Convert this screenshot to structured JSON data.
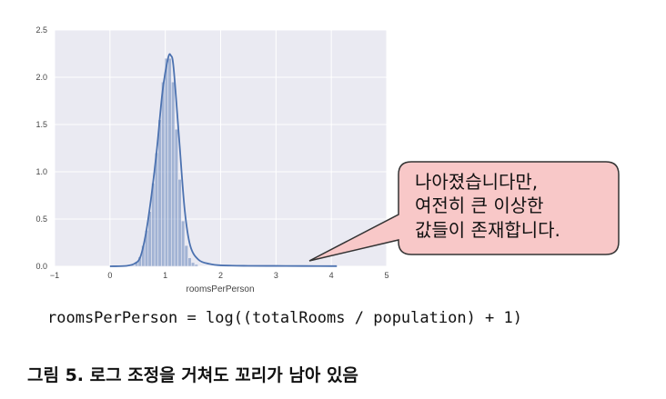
{
  "chart_data": {
    "type": "bar",
    "xlabel": "roomsPerPerson",
    "ylabel": "",
    "xlim": [
      -1,
      5
    ],
    "ylim": [
      0,
      2.5
    ],
    "xticks": [
      "−1",
      "0",
      "1",
      "2",
      "3",
      "4",
      "5"
    ],
    "yticks": [
      "0.0",
      "0.5",
      "1.0",
      "1.5",
      "2.0",
      "2.5"
    ],
    "grid": true,
    "histogram": {
      "bin_centers": [
        0.42,
        0.48,
        0.54,
        0.6,
        0.66,
        0.72,
        0.78,
        0.84,
        0.9,
        0.96,
        1.02,
        1.08,
        1.14,
        1.2,
        1.26,
        1.32,
        1.38,
        1.44,
        1.5,
        1.56
      ],
      "values": [
        0.01,
        0.04,
        0.1,
        0.22,
        0.38,
        0.58,
        0.88,
        1.2,
        1.55,
        1.95,
        2.2,
        2.2,
        1.95,
        1.45,
        0.92,
        0.48,
        0.22,
        0.09,
        0.04,
        0.02
      ]
    },
    "kde": {
      "x": [
        0.0,
        0.3,
        0.45,
        0.55,
        0.65,
        0.75,
        0.85,
        0.95,
        1.05,
        1.1,
        1.15,
        1.25,
        1.35,
        1.45,
        1.6,
        1.8,
        2.0,
        2.5,
        3.0,
        3.5,
        4.1
      ],
      "y": [
        0.0,
        0.005,
        0.03,
        0.1,
        0.35,
        0.75,
        1.25,
        1.85,
        2.2,
        2.23,
        2.1,
        1.35,
        0.6,
        0.22,
        0.07,
        0.025,
        0.01,
        0.005,
        0.004,
        0.003,
        0.002
      ]
    },
    "colors": {
      "fill": "#4c72b0",
      "line": "#4c72b0",
      "background": "#eaeaf2",
      "grid": "#ffffff"
    }
  },
  "callout": {
    "lines": [
      "나아졌습니다만,",
      "여전히 큰 이상한",
      "값들이 존재합니다."
    ],
    "colors": {
      "fill": "#f8c8c8",
      "border": "#333333"
    }
  },
  "formula": "roomsPerPerson = log((totalRooms / population) + 1)",
  "caption": "그림 5. 로그 조정을 거쳐도 꼬리가 남아 있음"
}
